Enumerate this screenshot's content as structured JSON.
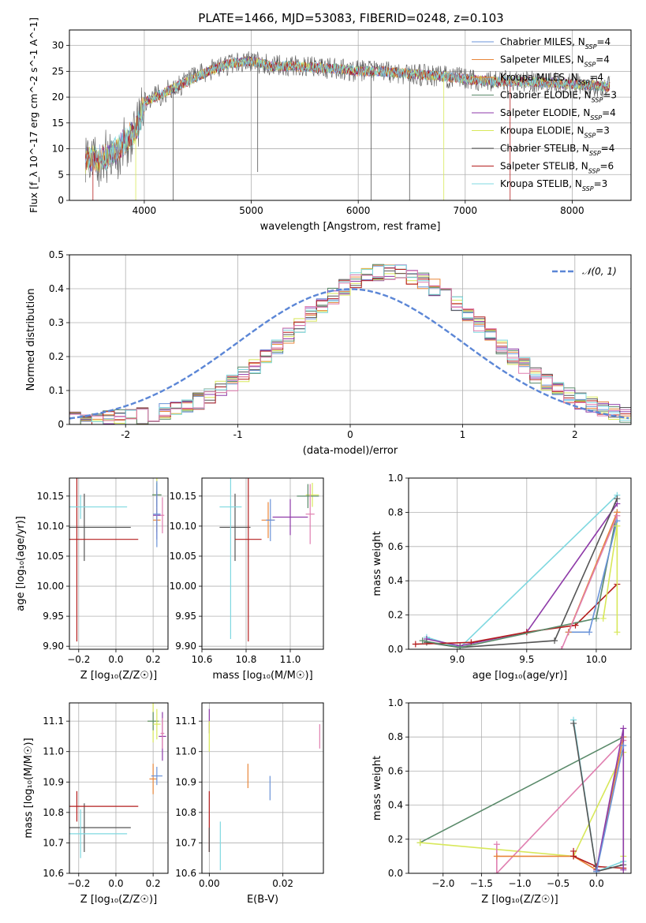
{
  "figure": {
    "title": "PLATE=1466, MJD=53083, FIBERID=0248, z=0.103"
  },
  "colors": {
    "Chabrier MILES": "#6a93d8",
    "Salpeter MILES": "#e8863a",
    "Kroupa MILES": "#e8863a",
    "Chabrier ELODIE": "#5a8a6a",
    "Salpeter ELODIE": "#8e3aa8",
    "Kroupa ELODIE": "#d8e85a",
    "Chabrier STELIB": "#555555",
    "Salpeter STELIB": "#b41e1e",
    "Kroupa STELIB": "#7fd8e0",
    "pink": "#e07fb0",
    "normal": "#5b86d6"
  },
  "chart_data": [
    {
      "type": "line",
      "panel": "spectrum",
      "xlabel": "wavelength [Angstrom, rest frame]",
      "ylabel": "Flux [f_λ 10^-17 erg cm^-2 s^-1 A^-1]",
      "xlim": [
        3300,
        8550
      ],
      "ylim": [
        0,
        33
      ],
      "xticks": [
        4000,
        5000,
        6000,
        7000,
        8000
      ],
      "yticks": [
        0,
        5,
        10,
        15,
        20,
        25,
        30
      ],
      "grid": true,
      "legend_position": "right",
      "legend": [
        {
          "main": "Chabrier MILES, N",
          "sub": "SSP",
          "suffix": "=4",
          "color_key": "Chabrier MILES"
        },
        {
          "main": "Salpeter MILES, N",
          "sub": "SSP",
          "suffix": "=4",
          "color_key": "Salpeter MILES"
        },
        {
          "main": "Kroupa MILES, N",
          "sub": "SSP",
          "suffix": "=4",
          "color_key": "Kroupa MILES"
        },
        {
          "main": "Chabrier ELODIE, N",
          "sub": "SSP",
          "suffix": "=3",
          "color_key": "Chabrier ELODIE"
        },
        {
          "main": "Salpeter ELODIE, N",
          "sub": "SSP",
          "suffix": "=4",
          "color_key": "Salpeter ELODIE"
        },
        {
          "main": "Kroupa ELODIE, N",
          "sub": "SSP",
          "suffix": "=3",
          "color_key": "Kroupa ELODIE"
        },
        {
          "main": "Chabrier STELIB, N",
          "sub": "SSP",
          "suffix": "=4",
          "color_key": "Chabrier STELIB"
        },
        {
          "main": "Salpeter STELIB, N",
          "sub": "SSP",
          "suffix": "=6",
          "color_key": "Salpeter STELIB"
        },
        {
          "main": "Kroupa STELIB, N",
          "sub": "SSP",
          "suffix": "=3",
          "color_key": "Kroupa STELIB"
        }
      ],
      "continuum_nodes": [
        [
          3450,
          8
        ],
        [
          3600,
          8
        ],
        [
          3700,
          9
        ],
        [
          3800,
          11
        ],
        [
          3900,
          13
        ],
        [
          3950,
          15
        ],
        [
          4000,
          19
        ],
        [
          4100,
          20
        ],
        [
          4200,
          21
        ],
        [
          4400,
          23
        ],
        [
          4600,
          25
        ],
        [
          4800,
          26.5
        ],
        [
          5000,
          27
        ],
        [
          5200,
          26
        ],
        [
          5400,
          26
        ],
        [
          5800,
          25.5
        ],
        [
          6000,
          25
        ],
        [
          6200,
          25
        ],
        [
          6500,
          24.5
        ],
        [
          6800,
          24
        ],
        [
          7000,
          23.5
        ],
        [
          7300,
          23
        ],
        [
          7600,
          23
        ],
        [
          8000,
          22.5
        ],
        [
          8350,
          22
        ]
      ],
      "spikes_down": [
        {
          "x": 3520,
          "y": 0,
          "color_key": "Salpeter STELIB"
        },
        {
          "x": 3920,
          "y": 0,
          "color_key": "Kroupa ELODIE"
        },
        {
          "x": 4270,
          "y": 0,
          "color_key": "Chabrier STELIB"
        },
        {
          "x": 5060,
          "y": 5.5,
          "color_key": "Chabrier STELIB"
        },
        {
          "x": 6120,
          "y": 0,
          "color_key": "Chabrier STELIB"
        },
        {
          "x": 6480,
          "y": 0,
          "color_key": "Chabrier STELIB"
        },
        {
          "x": 6800,
          "y": 0,
          "color_key": "Kroupa ELODIE"
        },
        {
          "x": 7420,
          "y": 0,
          "color_key": "Salpeter STELIB"
        }
      ]
    },
    {
      "type": "histogram",
      "panel": "residuals",
      "xlabel": "(data-model)/error",
      "ylabel": "Normed distribution",
      "xlim": [
        -2.5,
        2.5
      ],
      "ylim": [
        0,
        0.5
      ],
      "xticks": [
        -2,
        -1,
        0,
        1,
        2
      ],
      "yticks": [
        0.0,
        0.1,
        0.2,
        0.3,
        0.4,
        0.5
      ],
      "grid": true,
      "legend_position": "top-right",
      "normal_label": "𝒩(0, 1)",
      "bin_width": 0.1,
      "series_profile": {
        "peak": 0.44,
        "center": 0.35,
        "sigma": 0.85
      },
      "series_color_keys": [
        "Chabrier MILES",
        "Salpeter MILES",
        "Chabrier ELODIE",
        "Salpeter ELODIE",
        "Kroupa ELODIE",
        "Chabrier STELIB",
        "Salpeter STELIB",
        "Kroupa STELIB",
        "pink"
      ]
    },
    {
      "type": "scatter",
      "panel": "age-vs-Z",
      "xlabel": "Z [log₁₀(Z/Z☉)]",
      "ylabel": "age  [log₁₀(age/yr)]",
      "xlim": [
        -0.25,
        0.28
      ],
      "ylim": [
        9.895,
        10.18
      ],
      "xticks": [
        -0.2,
        0.0,
        0.2
      ],
      "xtick_labels": [
        "−0.2",
        "0.0",
        "0.2"
      ],
      "yticks": [
        9.9,
        9.95,
        10.0,
        10.05,
        10.1,
        10.15
      ],
      "ytick_labels": [
        "9.90",
        "9.95",
        "10.00",
        "10.05",
        "10.10",
        "10.15"
      ],
      "grid": true,
      "points": [
        {
          "x": 0.22,
          "y": 10.152,
          "xerr": 0.02,
          "yerr": 0.03,
          "color_key": "Kroupa ELODIE"
        },
        {
          "x": 0.22,
          "y": 10.152,
          "xerr": 0.025,
          "yerr": 0.02,
          "color_key": "Chabrier ELODIE"
        },
        {
          "x": 0.22,
          "y": 10.11,
          "xerr": 0.02,
          "yerr": 0.02,
          "color_key": "Salpeter MILES"
        },
        {
          "x": 0.22,
          "y": 10.118,
          "xerr": 0.02,
          "yerr": 0.04,
          "color_key": "Salpeter ELODIE"
        },
        {
          "x": 0.22,
          "y": 10.12,
          "xerr": 0.02,
          "yerr": 0.055,
          "color_key": "Chabrier MILES"
        },
        {
          "x": 0.25,
          "y": 10.118,
          "xerr": 0.01,
          "yerr": 0.03,
          "color_key": "pink"
        },
        {
          "x": -0.17,
          "y": 10.098,
          "xerr": 0.25,
          "yerr": 0.056,
          "color_key": "Chabrier STELIB"
        },
        {
          "x": -0.21,
          "y": 10.078,
          "xerr": 0.33,
          "yerr": 0.17,
          "color_key": "Salpeter STELIB"
        },
        {
          "x": -0.19,
          "y": 10.132,
          "xerr": 0.25,
          "yerr": 0.02,
          "color_key": "Kroupa STELIB"
        }
      ]
    },
    {
      "type": "scatter",
      "panel": "age-vs-mass",
      "xlabel": "mass [log₁₀(M/M☉)]",
      "ylabel": "",
      "xlim": [
        10.6,
        11.15
      ],
      "ylim": [
        9.895,
        10.18
      ],
      "xticks": [
        10.6,
        10.8,
        11.0
      ],
      "xtick_labels": [
        "10.6",
        "10.8",
        "11.0"
      ],
      "yticks": [
        9.9,
        9.95,
        10.0,
        10.05,
        10.1,
        10.15
      ],
      "ytick_labels": [
        "9.90",
        "9.95",
        "10.00",
        "10.05",
        "10.10",
        "10.15"
      ],
      "grid": true,
      "points": [
        {
          "x": 11.1,
          "y": 10.152,
          "xerr": 0.03,
          "yerr": 0.02,
          "color_key": "Kroupa ELODIE"
        },
        {
          "x": 11.08,
          "y": 10.15,
          "xerr": 0.05,
          "yerr": 0.02,
          "color_key": "Chabrier ELODIE"
        },
        {
          "x": 10.9,
          "y": 10.11,
          "xerr": 0.03,
          "yerr": 0.03,
          "color_key": "Salpeter MILES"
        },
        {
          "x": 10.91,
          "y": 10.11,
          "xerr": 0.02,
          "yerr": 0.035,
          "color_key": "Chabrier MILES"
        },
        {
          "x": 11.0,
          "y": 10.115,
          "xerr": 0.08,
          "yerr": 0.03,
          "color_key": "Salpeter ELODIE"
        },
        {
          "x": 11.09,
          "y": 10.12,
          "xerr": 0.02,
          "yerr": 0.05,
          "color_key": "pink"
        },
        {
          "x": 10.75,
          "y": 10.098,
          "xerr": 0.07,
          "yerr": 0.056,
          "color_key": "Chabrier STELIB"
        },
        {
          "x": 10.81,
          "y": 10.078,
          "xerr": 0.06,
          "yerr": 0.17,
          "color_key": "Salpeter STELIB"
        },
        {
          "x": 10.73,
          "y": 10.132,
          "xerr": 0.05,
          "yerr": 0.22,
          "color_key": "Kroupa STELIB"
        }
      ]
    },
    {
      "type": "line",
      "panel": "mass-weight-vs-age",
      "xlabel": "age  [log₁₀(age/yr)]",
      "ylabel": "mass weight",
      "xlim": [
        8.65,
        10.25
      ],
      "ylim": [
        0,
        1
      ],
      "xticks": [
        9.0,
        9.5,
        10.0
      ],
      "xtick_labels": [
        "9.0",
        "9.5",
        "10.0"
      ],
      "yticks": [
        0,
        0.2,
        0.4,
        0.6,
        0.8,
        1.0
      ],
      "ytick_labels": [
        "0.0",
        "0.2",
        "0.4",
        "0.6",
        "0.8",
        "1.0"
      ],
      "grid": true,
      "series": [
        {
          "color_key": "Kroupa STELIB",
          "x": [
            8.78,
            9.02,
            10.15
          ],
          "y": [
            0.07,
            0.01,
            0.9
          ]
        },
        {
          "color_key": "Salpeter ELODIE",
          "x": [
            8.78,
            9.02,
            9.5,
            10.15
          ],
          "y": [
            0.06,
            0.02,
            0.1,
            0.85
          ]
        },
        {
          "color_key": "Chabrier STELIB",
          "x": [
            8.78,
            9.02,
            9.7,
            10.15
          ],
          "y": [
            0.04,
            0.01,
            0.05,
            0.88
          ]
        },
        {
          "color_key": "Salpeter STELIB",
          "x": [
            8.7,
            9.1,
            9.5,
            9.85,
            10.15
          ],
          "y": [
            0.03,
            0.04,
            0.1,
            0.14,
            0.38
          ]
        },
        {
          "color_key": "Chabrier ELODIE",
          "x": [
            8.75,
            9.02,
            10.0,
            10.15
          ],
          "y": [
            0.05,
            0.01,
            0.18,
            0.8
          ]
        },
        {
          "color_key": "Chabrier MILES",
          "x": [
            9.8,
            9.95,
            10.15
          ],
          "y": [
            0.1,
            0.1,
            0.75
          ]
        },
        {
          "color_key": "Salpeter MILES",
          "x": [
            9.8,
            10.15
          ],
          "y": [
            0.1,
            0.8
          ]
        },
        {
          "color_key": "pink",
          "x": [
            9.75,
            10.15
          ],
          "y": [
            0.0,
            0.78
          ]
        },
        {
          "color_key": "Kroupa ELODIE",
          "x": [
            10.05,
            10.15,
            10.15
          ],
          "y": [
            0.18,
            0.72,
            0.1
          ]
        }
      ]
    },
    {
      "type": "scatter",
      "panel": "mass-vs-Z",
      "xlabel": "Z [log₁₀(Z/Z☉)]",
      "ylabel": "mass [log₁₀(M/M☉)]",
      "xlim": [
        -0.25,
        0.28
      ],
      "ylim": [
        10.6,
        11.16
      ],
      "xticks": [
        -0.2,
        0.0,
        0.2
      ],
      "xtick_labels": [
        "−0.2",
        "0.0",
        "0.2"
      ],
      "yticks": [
        10.6,
        10.7,
        10.8,
        10.9,
        11.0,
        11.1
      ],
      "ytick_labels": [
        "10.6",
        "10.7",
        "10.8",
        "10.9",
        "11.0",
        "11.1"
      ],
      "grid": true,
      "points": [
        {
          "x": 0.2,
          "y": 11.1,
          "xerr": 0.03,
          "yerr": 0.07,
          "color_key": "Kroupa ELODIE"
        },
        {
          "x": 0.2,
          "y": 11.1,
          "xerr": 0.03,
          "yerr": 0.03,
          "color_key": "Chabrier ELODIE"
        },
        {
          "x": 0.22,
          "y": 11.09,
          "xerr": 0.02,
          "yerr": 0.05,
          "color_key": "Kroupa ELODIE"
        },
        {
          "x": 0.25,
          "y": 11.05,
          "xerr": 0.02,
          "yerr": 0.08,
          "color_key": "Salpeter ELODIE"
        },
        {
          "x": 0.25,
          "y": 11.06,
          "xerr": 0.01,
          "yerr": 0.05,
          "color_key": "pink"
        },
        {
          "x": 0.2,
          "y": 10.91,
          "xerr": 0.02,
          "yerr": 0.05,
          "color_key": "Salpeter MILES"
        },
        {
          "x": 0.22,
          "y": 10.92,
          "xerr": 0.03,
          "yerr": 0.03,
          "color_key": "Chabrier MILES"
        },
        {
          "x": -0.17,
          "y": 10.75,
          "xerr": 0.25,
          "yerr": 0.08,
          "color_key": "Chabrier STELIB"
        },
        {
          "x": -0.21,
          "y": 10.82,
          "xerr": 0.33,
          "yerr": 0.05,
          "color_key": "Salpeter STELIB"
        },
        {
          "x": -0.19,
          "y": 10.73,
          "xerr": 0.25,
          "yerr": 0.08,
          "color_key": "Kroupa STELIB"
        }
      ]
    },
    {
      "type": "scatter",
      "panel": "mass-vs-ebv",
      "xlabel": "E(B-V)",
      "ylabel": "",
      "xlim": [
        -0.002,
        0.031
      ],
      "ylim": [
        10.6,
        11.16
      ],
      "xticks": [
        0.0,
        0.02
      ],
      "xtick_labels": [
        "0.00",
        "0.02"
      ],
      "yticks": [
        10.6,
        10.7,
        10.8,
        10.9,
        11.0,
        11.1
      ],
      "ytick_labels": [
        "10.6",
        "10.7",
        "10.8",
        "10.9",
        "11.0",
        "11.1"
      ],
      "grid": true,
      "points": [
        {
          "x": 0.0,
          "y": 11.1,
          "xerr": 0,
          "yerr": 0.04,
          "color_key": "Salpeter ELODIE"
        },
        {
          "x": 0.0,
          "y": 11.05,
          "xerr": 0,
          "yerr": 0.05,
          "color_key": "Kroupa ELODIE"
        },
        {
          "x": 0.0,
          "y": 10.77,
          "xerr": 0,
          "yerr": 0.1,
          "color_key": "Salpeter STELIB"
        },
        {
          "x": 0.0,
          "y": 10.71,
          "xerr": 0,
          "yerr": 0.04,
          "color_key": "Chabrier STELIB"
        },
        {
          "x": 0.003,
          "y": 10.69,
          "xerr": 0,
          "yerr": 0.08,
          "color_key": "Kroupa STELIB"
        },
        {
          "x": 0.0105,
          "y": 10.92,
          "xerr": 0,
          "yerr": 0.04,
          "color_key": "Salpeter MILES"
        },
        {
          "x": 0.0165,
          "y": 10.88,
          "xerr": 0,
          "yerr": 0.04,
          "color_key": "Chabrier MILES"
        },
        {
          "x": 0.03,
          "y": 11.05,
          "xerr": 0,
          "yerr": 0.04,
          "color_key": "pink"
        }
      ]
    },
    {
      "type": "line",
      "panel": "mass-weight-vs-Z",
      "xlabel": "Z [log₁₀(Z/Z☉)]",
      "ylabel": "mass weight",
      "xlim": [
        -2.45,
        0.45
      ],
      "ylim": [
        0,
        1
      ],
      "xticks": [
        -2.0,
        -1.5,
        -1.0,
        -0.5,
        0.0
      ],
      "xtick_labels": [
        "−2.0",
        "−1.5",
        "−1.0",
        "−0.5",
        "0.0"
      ],
      "yticks": [
        0,
        0.2,
        0.4,
        0.6,
        0.8,
        1.0
      ],
      "ytick_labels": [
        "0.0",
        "0.2",
        "0.4",
        "0.6",
        "0.8",
        "1.0"
      ],
      "grid": true,
      "series": [
        {
          "color_key": "Chabrier ELODIE",
          "x": [
            -2.3,
            0.35
          ],
          "y": [
            0.18,
            0.8
          ]
        },
        {
          "color_key": "Kroupa ELODIE",
          "x": [
            -2.3,
            -0.3,
            0.35,
            0.35
          ],
          "y": [
            0.18,
            0.1,
            0.71,
            0.1
          ]
        },
        {
          "color_key": "pink",
          "x": [
            -1.3,
            -1.3,
            0.35
          ],
          "y": [
            0.17,
            0.0,
            0.78
          ]
        },
        {
          "color_key": "Salpeter MILES",
          "x": [
            -1.3,
            -0.3,
            0.0,
            0.35
          ],
          "y": [
            0.1,
            0.1,
            0.02,
            0.8
          ]
        },
        {
          "color_key": "Salpeter STELIB",
          "x": [
            -0.3,
            -0.3,
            0.0,
            0.35
          ],
          "y": [
            0.13,
            0.1,
            0.04,
            0.03
          ]
        },
        {
          "color_key": "Kroupa STELIB",
          "x": [
            -0.3,
            0.0,
            0.35
          ],
          "y": [
            0.9,
            0.01,
            0.07
          ]
        },
        {
          "color_key": "Chabrier STELIB",
          "x": [
            -0.3,
            0.0,
            0.35
          ],
          "y": [
            0.88,
            0.01,
            0.05
          ]
        },
        {
          "color_key": "Salpeter ELODIE",
          "x": [
            0.0,
            0.35,
            0.35
          ],
          "y": [
            0.02,
            0.85,
            0.02
          ]
        },
        {
          "color_key": "Chabrier MILES",
          "x": [
            0.0,
            0.35
          ],
          "y": [
            0.01,
            0.75
          ]
        }
      ]
    }
  ]
}
